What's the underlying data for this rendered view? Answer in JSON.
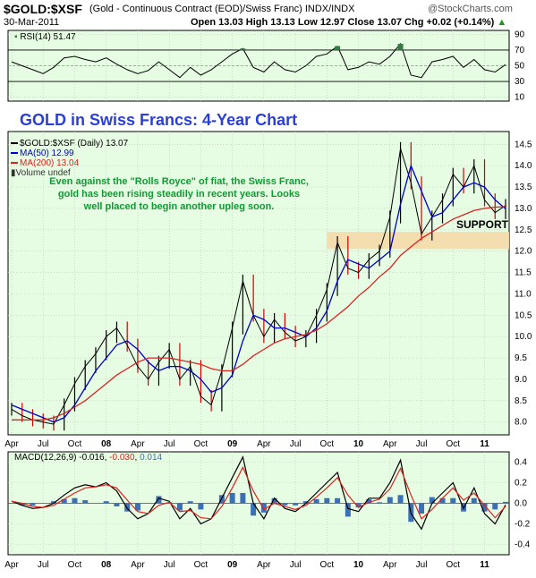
{
  "header": {
    "symbol": "$GOLD:$XSF",
    "description": "(Gold - Continuous Contract (EOD)/Swiss Franc) INDX/INDX",
    "watermark": "@StockCharts.com",
    "date": "30-Mar-2011",
    "ohlc": "Open 13.03  High 13.13  Low 12.97  Close 13.07  Chg +0.02 (+0.14%)",
    "ohlc_arrow": "▲"
  },
  "rsi_panel": {
    "label": "RSI(14) 51.47",
    "ticks": [
      "90",
      "70",
      "50",
      "30",
      "10"
    ],
    "tick_values": [
      90,
      70,
      50,
      30,
      10
    ],
    "ylim": [
      5,
      95
    ],
    "overbought": 70,
    "oversold": 30,
    "color": "#000000",
    "fill_color": "#2f7d3f"
  },
  "price_panel": {
    "title": "GOLD in Swiss Francs: 4-Year Chart",
    "legend": {
      "main": "$GOLD:$XSF (Daily) 13.07",
      "ma50": "MA(50) 12.99",
      "ma200": "MA(200) 13.04",
      "volume": "Volume undef"
    },
    "annotation_lines": [
      "Even against the \"Rolls Royce\" of fiat, the Swiss Franc,",
      "gold has been rising steadily in recent years. Looks",
      "well placed to begin another upleg soon."
    ],
    "support_label": "SUPPORT",
    "y_ticks": [
      "14.5",
      "14.0",
      "13.5",
      "13.0",
      "12.5",
      "12.0",
      "11.5",
      "11.0",
      "10.5",
      "10.0",
      "9.5",
      "9.0",
      "8.5",
      "8.0"
    ],
    "y_tick_values": [
      14.5,
      14.0,
      13.5,
      13.0,
      12.5,
      12.0,
      11.5,
      11.0,
      10.5,
      10.0,
      9.5,
      9.0,
      8.5,
      8.0
    ],
    "ylim": [
      7.7,
      14.8
    ],
    "support_zone": [
      12.05,
      12.45
    ],
    "bg": "#e6fde3",
    "support_color": "#f5d9a8"
  },
  "macd_panel": {
    "label_prefix": "MACD(12,26,9)",
    "macd": "-0.016",
    "signal": "-0.030",
    "histogram": "0.014",
    "y_ticks": [
      "0.4",
      "0.2",
      "0.0",
      "-0.2",
      "-0.4"
    ],
    "y_tick_values": [
      0.4,
      0.2,
      0.0,
      -0.2,
      -0.4
    ],
    "ylim": [
      -0.5,
      0.5
    ],
    "macd_color": "#000000",
    "signal_color": "#dd2222",
    "hist_color": "#3b6fb6"
  },
  "x_axis": {
    "labels": [
      "Apr",
      "Jul",
      "Oct",
      "08",
      "Apr",
      "Jul",
      "Oct",
      "09",
      "Apr",
      "Jul",
      "Oct",
      "10",
      "Apr",
      "Jul",
      "Oct",
      "11"
    ],
    "bold": [
      false,
      false,
      false,
      true,
      false,
      false,
      false,
      true,
      false,
      false,
      false,
      true,
      false,
      false,
      false,
      true
    ]
  },
  "chart_data": {
    "type": "line",
    "title": "GOLD in Swiss Francs: 4-Year Chart",
    "subtitle": "$GOLD:$XSF (Gold - Continuous Contract (EOD)/Swiss Franc) INDX/INDX",
    "ylim": [
      7.7,
      14.8
    ],
    "grid": true,
    "legend_position": "top-left",
    "x": [
      "2007-04",
      "2007-05",
      "2007-06",
      "2007-07",
      "2007-08",
      "2007-09",
      "2007-10",
      "2007-11",
      "2007-12",
      "2008-01",
      "2008-02",
      "2008-03",
      "2008-04",
      "2008-05",
      "2008-06",
      "2008-07",
      "2008-08",
      "2008-09",
      "2008-10",
      "2008-11",
      "2008-12",
      "2009-01",
      "2009-02",
      "2009-03",
      "2009-04",
      "2009-05",
      "2009-06",
      "2009-07",
      "2009-08",
      "2009-09",
      "2009-10",
      "2009-11",
      "2009-12",
      "2010-01",
      "2010-02",
      "2010-03",
      "2010-04",
      "2010-05",
      "2010-06",
      "2010-07",
      "2010-08",
      "2010-09",
      "2010-10",
      "2010-11",
      "2010-12",
      "2011-01",
      "2011-02",
      "2011-03"
    ],
    "series": [
      {
        "name": "$GOLD:$XSF (Daily) 13.07",
        "color": "#000000",
        "values": [
          8.3,
          8.15,
          8.05,
          8.0,
          7.95,
          8.4,
          8.9,
          9.3,
          9.6,
          10.0,
          10.2,
          9.8,
          9.3,
          9.0,
          9.4,
          9.7,
          9.0,
          9.3,
          8.6,
          8.4,
          9.2,
          10.2,
          11.3,
          10.5,
          10.0,
          10.4,
          10.1,
          9.9,
          10.0,
          10.5,
          11.1,
          12.2,
          11.6,
          11.5,
          11.8,
          12.0,
          12.8,
          14.4,
          13.6,
          12.4,
          12.8,
          13.2,
          13.8,
          13.5,
          14.0,
          13.2,
          12.9,
          13.07
        ]
      },
      {
        "name": "MA(50) 12.99",
        "color": "#0000cc",
        "values": [
          8.4,
          8.3,
          8.2,
          8.1,
          8.0,
          8.1,
          8.4,
          8.8,
          9.2,
          9.5,
          9.8,
          9.9,
          9.7,
          9.4,
          9.2,
          9.3,
          9.3,
          9.2,
          9.0,
          8.7,
          8.8,
          9.1,
          9.9,
          10.5,
          10.4,
          10.2,
          10.2,
          10.1,
          10.0,
          10.2,
          10.6,
          11.3,
          11.8,
          11.7,
          11.6,
          11.8,
          12.0,
          13.1,
          14.0,
          13.4,
          12.8,
          12.9,
          13.2,
          13.5,
          13.6,
          13.5,
          13.2,
          12.99
        ]
      },
      {
        "name": "MA(200) 13.04",
        "color": "#dd2222",
        "values": [
          8.05,
          8.05,
          8.05,
          8.05,
          8.1,
          8.2,
          8.35,
          8.5,
          8.7,
          8.9,
          9.1,
          9.25,
          9.4,
          9.5,
          9.5,
          9.5,
          9.45,
          9.4,
          9.35,
          9.25,
          9.2,
          9.2,
          9.35,
          9.55,
          9.7,
          9.85,
          9.95,
          10.0,
          10.05,
          10.15,
          10.3,
          10.5,
          10.7,
          10.95,
          11.15,
          11.4,
          11.6,
          11.9,
          12.1,
          12.3,
          12.45,
          12.6,
          12.75,
          12.85,
          12.95,
          13.0,
          13.03,
          13.04
        ]
      }
    ],
    "rsi": {
      "name": "RSI(14) 51.47",
      "values": [
        55,
        50,
        45,
        40,
        48,
        60,
        62,
        58,
        55,
        60,
        52,
        45,
        40,
        44,
        55,
        45,
        35,
        48,
        38,
        45,
        55,
        65,
        72,
        48,
        42,
        55,
        45,
        42,
        50,
        62,
        65,
        75,
        45,
        48,
        55,
        52,
        62,
        78,
        38,
        35,
        55,
        58,
        62,
        48,
        58,
        45,
        42,
        51.47
      ]
    },
    "macd": {
      "name": "MACD(12,26,9)",
      "macd": [
        0.02,
        -0.02,
        -0.05,
        -0.04,
        0.0,
        0.08,
        0.15,
        0.18,
        0.16,
        0.2,
        0.12,
        -0.05,
        -0.15,
        -0.1,
        0.05,
        0.02,
        -0.15,
        -0.05,
        -0.2,
        -0.15,
        0.05,
        0.25,
        0.45,
        0.0,
        -0.15,
        0.05,
        -0.05,
        -0.08,
        0.0,
        0.1,
        0.2,
        0.3,
        -0.05,
        -0.08,
        0.05,
        0.05,
        0.2,
        0.42,
        -0.1,
        -0.25,
        0.0,
        0.1,
        0.2,
        -0.05,
        0.15,
        -0.1,
        -0.2,
        -0.016
      ],
      "signal": [
        0.02,
        0.0,
        -0.03,
        -0.04,
        -0.02,
        0.04,
        0.1,
        0.15,
        0.16,
        0.18,
        0.15,
        0.03,
        -0.08,
        -0.1,
        -0.02,
        0.01,
        -0.08,
        -0.07,
        -0.14,
        -0.15,
        -0.03,
        0.15,
        0.35,
        0.12,
        -0.06,
        0.0,
        -0.03,
        -0.06,
        -0.02,
        0.06,
        0.15,
        0.25,
        0.08,
        -0.04,
        0.01,
        0.04,
        0.14,
        0.34,
        0.08,
        -0.15,
        -0.06,
        0.05,
        0.15,
        0.03,
        0.1,
        -0.02,
        -0.14,
        -0.03
      ],
      "histogram": [
        0.0,
        -0.02,
        -0.02,
        0.0,
        0.02,
        0.04,
        0.05,
        0.03,
        0.0,
        0.02,
        -0.03,
        -0.08,
        -0.07,
        0.0,
        0.07,
        0.01,
        -0.07,
        0.02,
        -0.06,
        0.0,
        0.08,
        0.1,
        0.1,
        -0.12,
        -0.09,
        0.05,
        -0.02,
        -0.02,
        0.02,
        0.04,
        0.05,
        0.05,
        -0.13,
        -0.04,
        0.04,
        0.01,
        0.06,
        0.08,
        -0.18,
        -0.1,
        0.06,
        0.05,
        0.05,
        -0.08,
        0.05,
        -0.08,
        -0.06,
        0.014
      ]
    }
  }
}
